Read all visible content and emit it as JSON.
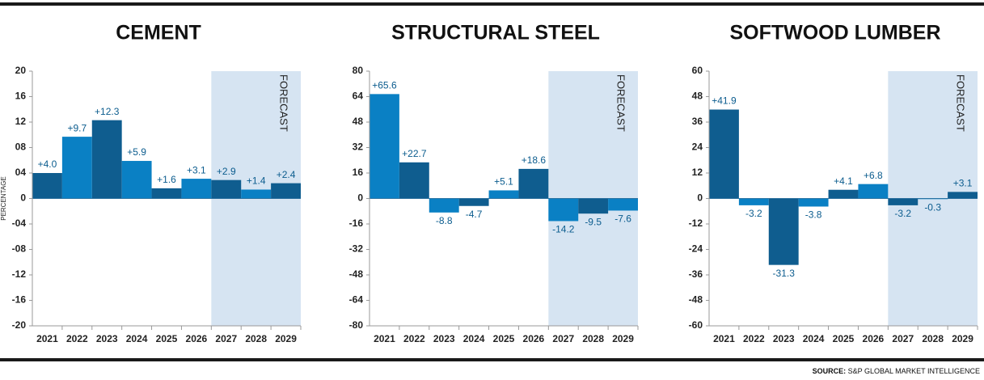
{
  "chart_data": [
    {
      "type": "bar",
      "title": "CEMENT",
      "ylabel": "PERCENTAGE",
      "categories": [
        "2021",
        "2022",
        "2023",
        "2024",
        "2025",
        "2026",
        "2027",
        "2028",
        "2029"
      ],
      "values": [
        4.0,
        9.7,
        12.3,
        5.9,
        1.6,
        3.1,
        2.9,
        1.4,
        2.4
      ],
      "value_labels": [
        "+4.0",
        "+9.7",
        "+12.3",
        "+5.9",
        "+1.6",
        "+3.1",
        "+2.9",
        "+1.4",
        "+2.4"
      ],
      "colors": [
        "#0f5d8f",
        "#0a80c4",
        "#0f5d8f",
        "#0a80c4",
        "#0f5d8f",
        "#0a80c4",
        "#0f5d8f",
        "#0a80c4",
        "#0f5d8f"
      ],
      "ylim": [
        -20,
        20
      ],
      "yticks": [
        -20,
        -16,
        -12,
        {
          "value": -8,
          "label": "-08"
        },
        {
          "value": -4,
          "label": "-04"
        },
        0,
        {
          "value": 4,
          "label": "04"
        },
        {
          "value": 8,
          "label": "08"
        },
        12,
        16,
        20
      ],
      "forecast": {
        "label": "FORECAST",
        "start": 2027
      }
    },
    {
      "type": "bar",
      "title": "STRUCTURAL STEEL",
      "categories": [
        "2021",
        "2022",
        "2023",
        "2024",
        "2025",
        "2026",
        "2027",
        "2028",
        "2029"
      ],
      "values": [
        65.6,
        22.7,
        -8.8,
        -4.7,
        5.1,
        18.6,
        -14.2,
        -9.5,
        -7.6
      ],
      "value_labels": [
        "+65.6",
        "+22.7",
        "-8.8",
        "-4.7",
        "+5.1",
        "+18.6",
        "-14.2",
        "-9.5",
        "-7.6"
      ],
      "colors": [
        "#0a80c4",
        "#0f5d8f",
        "#0a80c4",
        "#0f5d8f",
        "#0a80c4",
        "#0f5d8f",
        "#0a80c4",
        "#0f5d8f",
        "#0a80c4"
      ],
      "ylim": [
        -80,
        80
      ],
      "yticks": [
        -80,
        -64,
        -48,
        -32,
        -16,
        0,
        16,
        32,
        48,
        64,
        80
      ],
      "forecast": {
        "label": "FORECAST",
        "start": 2027
      }
    },
    {
      "type": "bar",
      "title": "SOFTWOOD LUMBER",
      "categories": [
        "2021",
        "2022",
        "2023",
        "2024",
        "2025",
        "2026",
        "2027",
        "2028",
        "2029"
      ],
      "values": [
        41.9,
        -3.2,
        -31.3,
        -3.8,
        4.1,
        6.8,
        -3.2,
        -0.3,
        3.1
      ],
      "value_labels": [
        "+41.9",
        "-3.2",
        "-31.3",
        "-3.8",
        "+4.1",
        "+6.8",
        "-3.2",
        "-0.3",
        "+3.1"
      ],
      "colors": [
        "#0f5d8f",
        "#0a80c4",
        "#0f5d8f",
        "#0a80c4",
        "#0f5d8f",
        "#0a80c4",
        "#0f5d8f",
        "#0a80c4",
        "#0f5d8f"
      ],
      "ylim": [
        -60,
        60
      ],
      "yticks": [
        -60,
        -48,
        -36,
        -24,
        -12,
        0,
        12,
        24,
        36,
        48,
        60
      ],
      "forecast": {
        "label": "FORECAST",
        "start": 2027
      }
    }
  ],
  "source": {
    "label": "SOURCE:",
    "text": "S&P GLOBAL MARKET INTELLIGENCE"
  }
}
